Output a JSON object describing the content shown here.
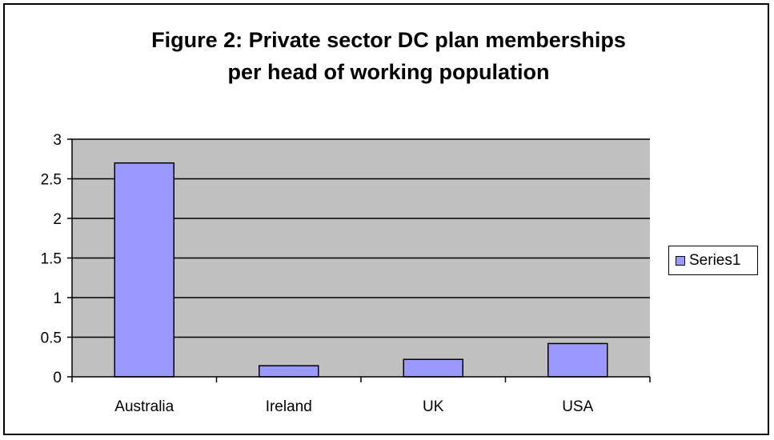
{
  "chart_data": {
    "type": "bar",
    "title_lines": [
      "Figure 2: Private sector  DC plan memberships",
      "per head of working population"
    ],
    "categories": [
      "Australia",
      "Ireland",
      "UK",
      "USA"
    ],
    "series": [
      {
        "name": "Series1",
        "values": [
          2.7,
          0.14,
          0.22,
          0.42
        ]
      }
    ],
    "ylim": [
      0,
      3
    ],
    "yticks": [
      0,
      0.5,
      1,
      1.5,
      2,
      2.5,
      3
    ],
    "ytick_labels": [
      "0",
      "0.5",
      "1",
      "1.5",
      "2",
      "2.5",
      "3"
    ],
    "xlabel": "",
    "ylabel": "",
    "grid": true,
    "legend_position": "right",
    "colors": {
      "bar_fill": "#9999FF",
      "bar_stroke": "#000000",
      "plot_background": "#C0C0C0",
      "gridline": "#000000"
    }
  }
}
